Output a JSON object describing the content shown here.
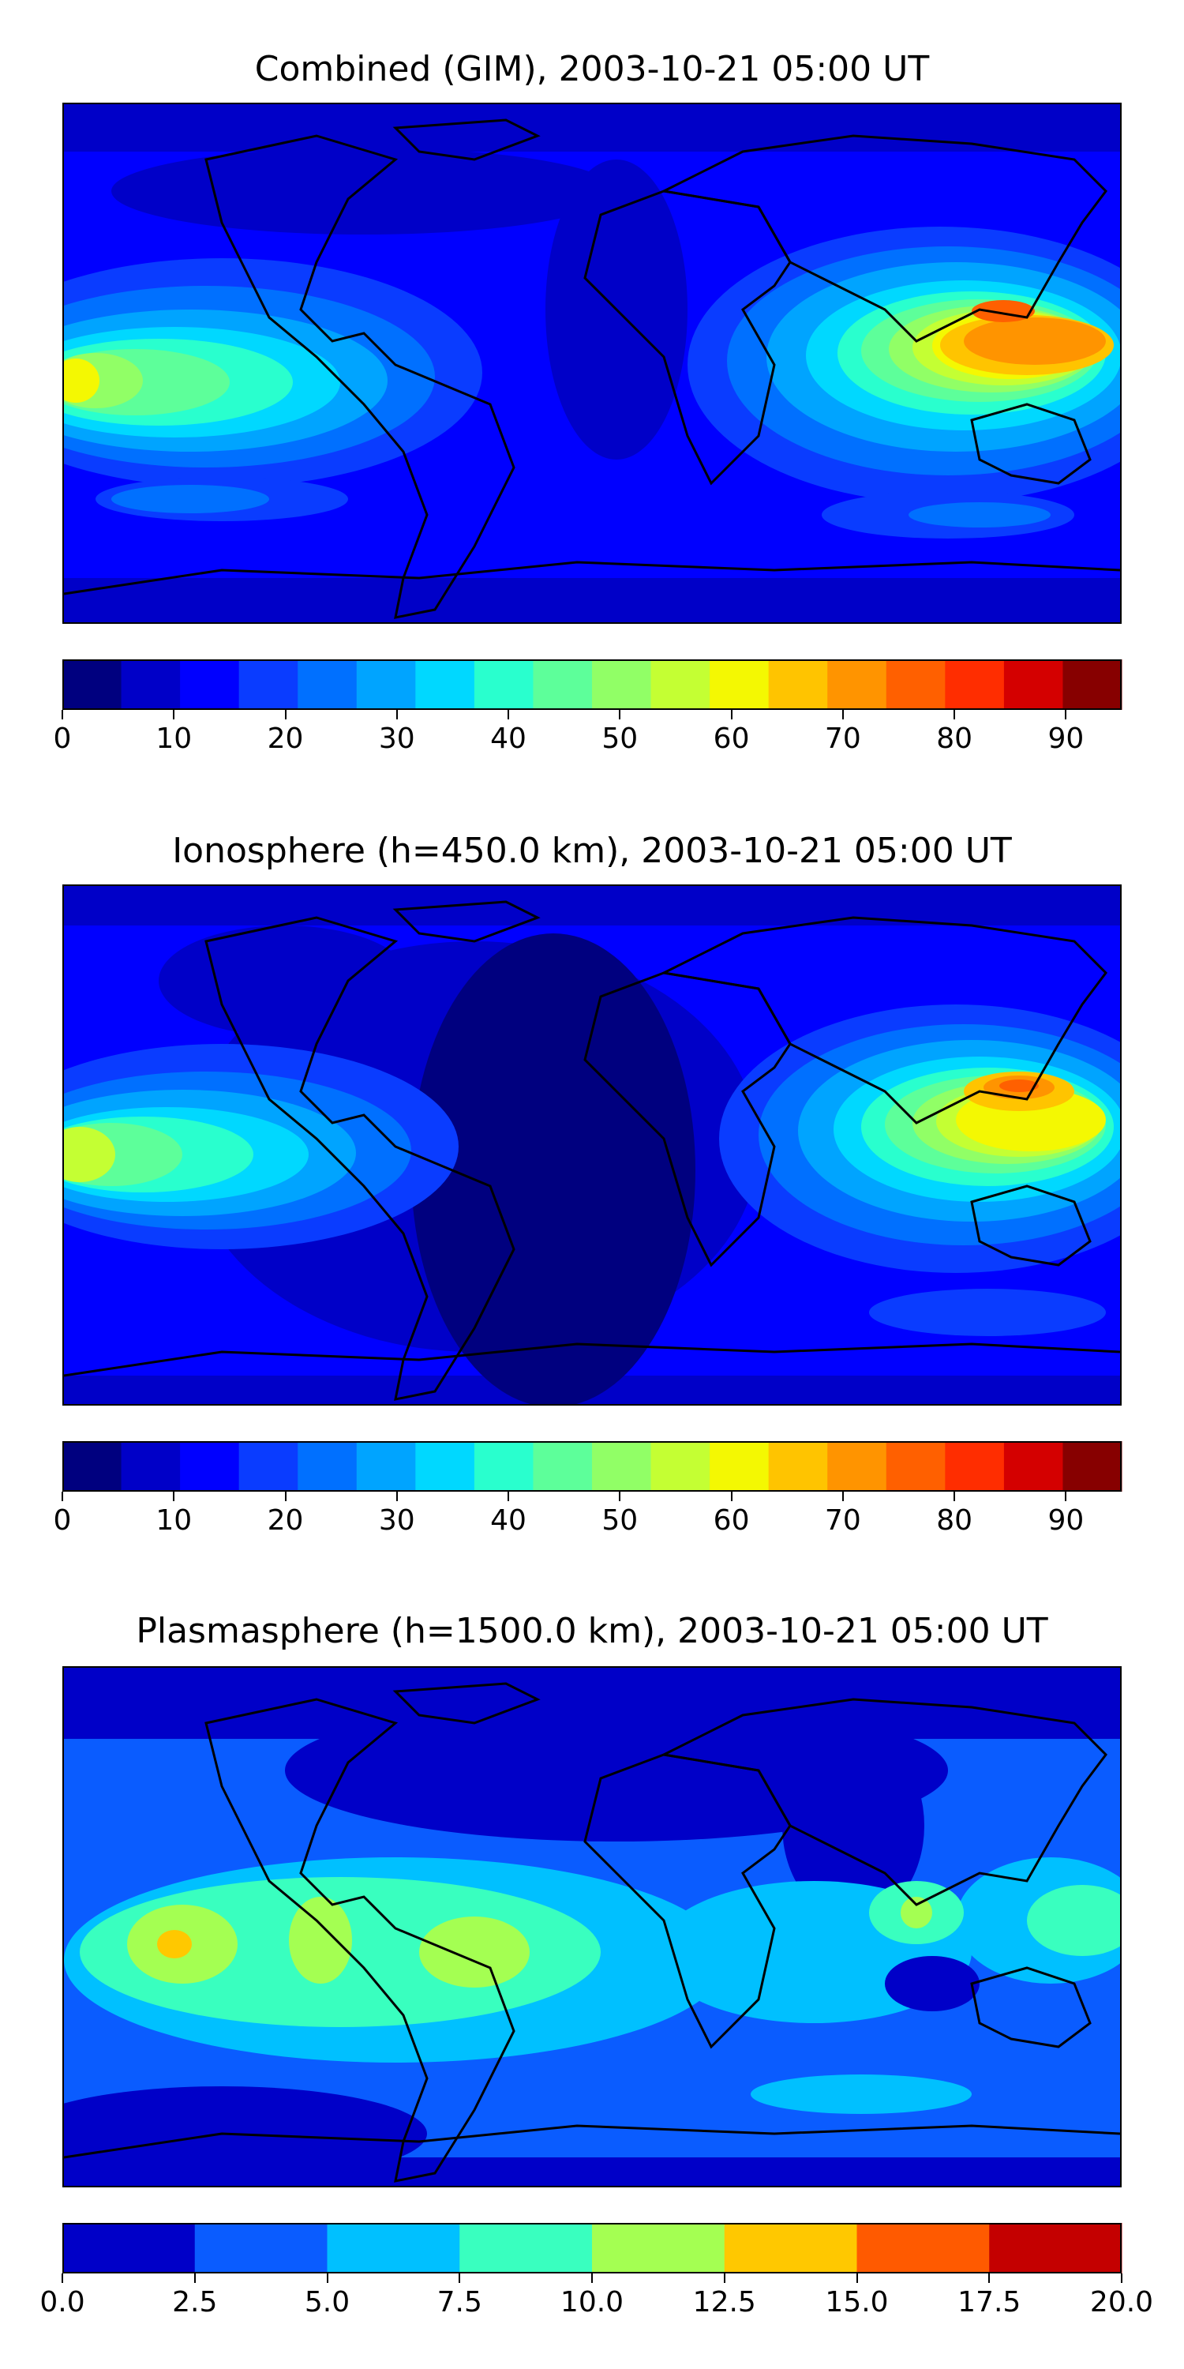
{
  "panels": [
    {
      "title": "Combined (GIM), 2003-10-21 05:00 UT",
      "colorbar": {
        "colors": [
          "#00007f",
          "#0000c8",
          "#0000ff",
          "#0a3cff",
          "#0070ff",
          "#00a4ff",
          "#00d8ff",
          "#29ffce",
          "#5dff9a",
          "#91ff66",
          "#c4ff33",
          "#f4f802",
          "#ffc400",
          "#ff9400",
          "#ff6000",
          "#ff2d00",
          "#d40000",
          "#870000"
        ],
        "tick_labels": [
          "0",
          "10",
          "20",
          "30",
          "40",
          "50",
          "60",
          "70",
          "80",
          "90"
        ],
        "tick_values": [
          0,
          10,
          20,
          30,
          40,
          50,
          60,
          70,
          80,
          90
        ],
        "range": [
          0,
          95
        ]
      }
    },
    {
      "title": "Ionosphere  (h=450.0 km), 2003-10-21 05:00 UT",
      "colorbar": {
        "colors": [
          "#00007f",
          "#0000c8",
          "#0000ff",
          "#0a3cff",
          "#0070ff",
          "#00a4ff",
          "#00d8ff",
          "#29ffce",
          "#5dff9a",
          "#91ff66",
          "#c4ff33",
          "#f4f802",
          "#ffc400",
          "#ff9400",
          "#ff6000",
          "#ff2d00",
          "#d40000",
          "#870000"
        ],
        "tick_labels": [
          "0",
          "10",
          "20",
          "30",
          "40",
          "50",
          "60",
          "70",
          "80",
          "90"
        ],
        "tick_values": [
          0,
          10,
          20,
          30,
          40,
          50,
          60,
          70,
          80,
          90
        ],
        "range": [
          0,
          95
        ]
      }
    },
    {
      "title": "Plasmasphere (h=1500.0 km), 2003-10-21 05:00 UT",
      "colorbar": {
        "colors": [
          "#0000c8",
          "#0a5cff",
          "#00c0ff",
          "#39ffbf",
          "#a4ff52",
          "#ffc800",
          "#ff5a00",
          "#c40000"
        ],
        "tick_labels": [
          "0.0",
          "2.5",
          "5.0",
          "7.5",
          "10.0",
          "12.5",
          "15.0",
          "17.5",
          "20.0"
        ],
        "tick_values": [
          0,
          2.5,
          5,
          7.5,
          10,
          12.5,
          15,
          17.5,
          20
        ],
        "range": [
          0,
          20
        ]
      }
    }
  ]
}
